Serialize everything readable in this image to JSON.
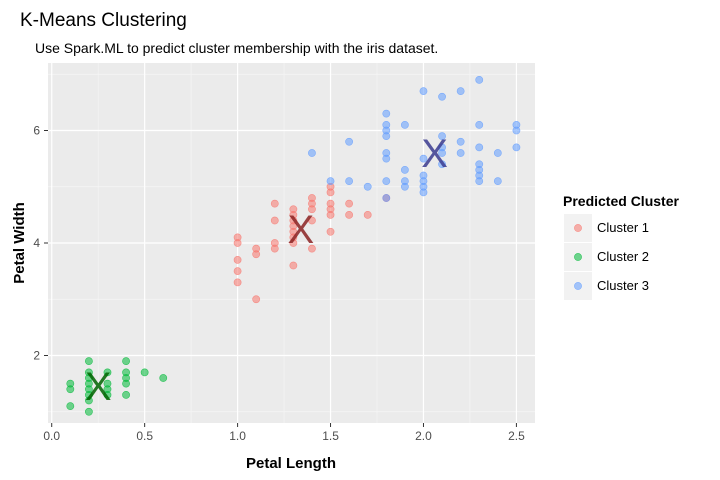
{
  "chart_data": {
    "type": "scatter",
    "title": "K-Means Clustering",
    "subtitle": "Use Spark.ML to predict cluster membership with the iris dataset.",
    "xlabel": "Petal Length",
    "ylabel": "Petal Width",
    "xlim": [
      -0.02,
      2.6
    ],
    "ylim": [
      0.8,
      7.2
    ],
    "xticks": [
      0.0,
      0.5,
      1.0,
      1.5,
      2.0,
      2.5
    ],
    "xtick_labels": [
      "0.0",
      "0.5",
      "1.0",
      "1.5",
      "2.0",
      "2.5"
    ],
    "yticks": [
      2,
      4,
      6
    ],
    "ytick_labels": [
      "2",
      "4",
      "6"
    ],
    "grid": true,
    "legend": {
      "title": "Predicted Cluster",
      "position": "right"
    },
    "series": [
      {
        "name": "Cluster 1",
        "color": "#F8766D",
        "centroid": {
          "x": 1.34,
          "y": 4.25,
          "label": "X",
          "color": "#8B2323"
        },
        "points": [
          [
            1.0,
            3.3
          ],
          [
            1.0,
            3.5
          ],
          [
            1.0,
            3.7
          ],
          [
            1.0,
            4.0
          ],
          [
            1.0,
            4.1
          ],
          [
            1.1,
            3.0
          ],
          [
            1.1,
            3.8
          ],
          [
            1.1,
            3.9
          ],
          [
            1.2,
            3.9
          ],
          [
            1.2,
            4.0
          ],
          [
            1.2,
            4.4
          ],
          [
            1.2,
            4.7
          ],
          [
            1.3,
            3.6
          ],
          [
            1.3,
            4.0
          ],
          [
            1.3,
            4.1
          ],
          [
            1.3,
            4.2
          ],
          [
            1.3,
            4.3
          ],
          [
            1.3,
            4.4
          ],
          [
            1.3,
            4.5
          ],
          [
            1.3,
            4.6
          ],
          [
            1.4,
            3.9
          ],
          [
            1.4,
            4.4
          ],
          [
            1.4,
            4.6
          ],
          [
            1.4,
            4.7
          ],
          [
            1.4,
            4.8
          ],
          [
            1.5,
            4.2
          ],
          [
            1.5,
            4.5
          ],
          [
            1.5,
            4.6
          ],
          [
            1.5,
            4.7
          ],
          [
            1.5,
            4.9
          ],
          [
            1.5,
            5.0
          ],
          [
            1.6,
            4.5
          ],
          [
            1.6,
            4.7
          ],
          [
            1.7,
            4.5
          ],
          [
            1.8,
            4.8
          ]
        ]
      },
      {
        "name": "Cluster 2",
        "color": "#00BA38",
        "centroid": {
          "x": 0.25,
          "y": 1.46,
          "label": "X",
          "color": "#006400"
        },
        "points": [
          [
            0.1,
            1.1
          ],
          [
            0.1,
            1.4
          ],
          [
            0.1,
            1.5
          ],
          [
            0.2,
            1.0
          ],
          [
            0.2,
            1.2
          ],
          [
            0.2,
            1.3
          ],
          [
            0.2,
            1.4
          ],
          [
            0.2,
            1.5
          ],
          [
            0.2,
            1.6
          ],
          [
            0.2,
            1.7
          ],
          [
            0.2,
            1.9
          ],
          [
            0.3,
            1.3
          ],
          [
            0.3,
            1.4
          ],
          [
            0.3,
            1.5
          ],
          [
            0.3,
            1.7
          ],
          [
            0.4,
            1.3
          ],
          [
            0.4,
            1.5
          ],
          [
            0.4,
            1.6
          ],
          [
            0.4,
            1.7
          ],
          [
            0.4,
            1.9
          ],
          [
            0.5,
            1.7
          ],
          [
            0.6,
            1.6
          ]
        ]
      },
      {
        "name": "Cluster 3",
        "color": "#619CFF",
        "centroid": {
          "x": 2.06,
          "y": 5.6,
          "label": "X",
          "color": "#3B3B8F"
        },
        "points": [
          [
            1.4,
            5.6
          ],
          [
            1.5,
            5.1
          ],
          [
            1.6,
            5.1
          ],
          [
            1.6,
            5.8
          ],
          [
            1.7,
            5.0
          ],
          [
            1.8,
            4.8
          ],
          [
            1.8,
            5.1
          ],
          [
            1.8,
            5.5
          ],
          [
            1.8,
            5.6
          ],
          [
            1.8,
            5.9
          ],
          [
            1.8,
            6.0
          ],
          [
            1.8,
            6.1
          ],
          [
            1.8,
            6.3
          ],
          [
            1.9,
            5.0
          ],
          [
            1.9,
            5.1
          ],
          [
            1.9,
            5.3
          ],
          [
            1.9,
            6.1
          ],
          [
            2.0,
            4.9
          ],
          [
            2.0,
            5.0
          ],
          [
            2.0,
            5.1
          ],
          [
            2.0,
            5.2
          ],
          [
            2.0,
            5.5
          ],
          [
            2.0,
            6.7
          ],
          [
            2.1,
            5.4
          ],
          [
            2.1,
            5.6
          ],
          [
            2.1,
            5.7
          ],
          [
            2.1,
            5.9
          ],
          [
            2.1,
            6.6
          ],
          [
            2.2,
            5.6
          ],
          [
            2.2,
            5.8
          ],
          [
            2.2,
            6.7
          ],
          [
            2.3,
            5.1
          ],
          [
            2.3,
            5.2
          ],
          [
            2.3,
            5.3
          ],
          [
            2.3,
            5.4
          ],
          [
            2.3,
            5.7
          ],
          [
            2.3,
            6.1
          ],
          [
            2.3,
            6.9
          ],
          [
            2.4,
            5.1
          ],
          [
            2.4,
            5.6
          ],
          [
            2.5,
            5.7
          ],
          [
            2.5,
            6.0
          ],
          [
            2.5,
            6.1
          ]
        ]
      }
    ]
  }
}
